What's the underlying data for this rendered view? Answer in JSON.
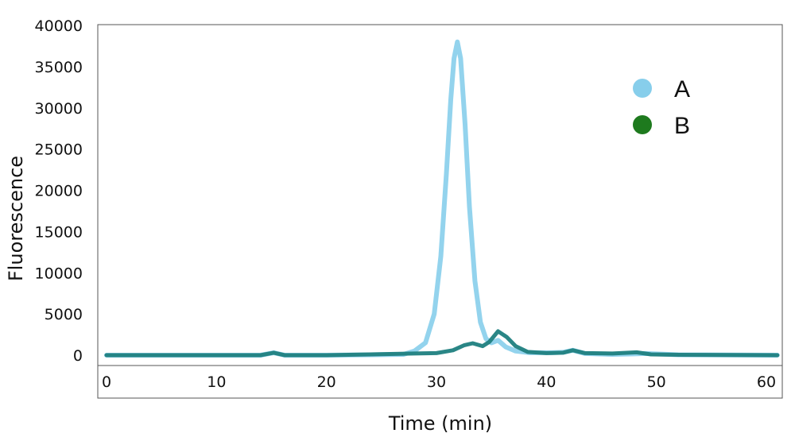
{
  "chart_data": {
    "type": "line",
    "title": "",
    "xlabel": "Time (min)",
    "ylabel": "Fluorescence",
    "xlim": [
      0,
      61
    ],
    "ylim": [
      0,
      40000
    ],
    "x_ticks": [
      0,
      10,
      20,
      30,
      40,
      50,
      60
    ],
    "y_ticks": [
      0,
      5000,
      10000,
      15000,
      20000,
      25000,
      30000,
      35000,
      40000
    ],
    "grid": false,
    "legend_position": "top-right",
    "series": [
      {
        "name": "A",
        "color": "#87ceeb",
        "x": [
          0,
          10,
          14,
          15.2,
          16.2,
          20,
          24,
          27,
          28,
          29,
          29.8,
          30.4,
          30.9,
          31.3,
          31.6,
          31.9,
          32.2,
          32.6,
          33.0,
          33.5,
          34.0,
          34.5,
          35.0,
          35.6,
          36.3,
          37.2,
          38.5,
          40.5,
          41.5,
          42.4,
          43.5,
          46,
          48,
          49,
          52,
          61
        ],
        "values": [
          0,
          0,
          0,
          300,
          0,
          0,
          50,
          100,
          500,
          1500,
          5000,
          12000,
          22000,
          31000,
          36000,
          38000,
          36000,
          28000,
          18000,
          9000,
          4000,
          2000,
          1500,
          1800,
          1000,
          500,
          300,
          300,
          350,
          600,
          200,
          100,
          150,
          200,
          50,
          0
        ]
      },
      {
        "name": "B",
        "color": "#1e7a1e",
        "x": [
          0,
          10,
          14,
          15.2,
          16.2,
          20,
          24,
          28,
          30,
          31.5,
          32.5,
          33.3,
          34.2,
          34.8,
          35.6,
          36.4,
          37.2,
          38.3,
          40,
          41.5,
          42.4,
          43.5,
          46,
          48.2,
          49.5,
          52,
          61
        ],
        "values": [
          0,
          0,
          0,
          300,
          0,
          0,
          100,
          200,
          250,
          600,
          1200,
          1450,
          1100,
          1600,
          2900,
          2200,
          1100,
          400,
          250,
          300,
          600,
          250,
          200,
          350,
          100,
          50,
          0
        ]
      }
    ]
  }
}
